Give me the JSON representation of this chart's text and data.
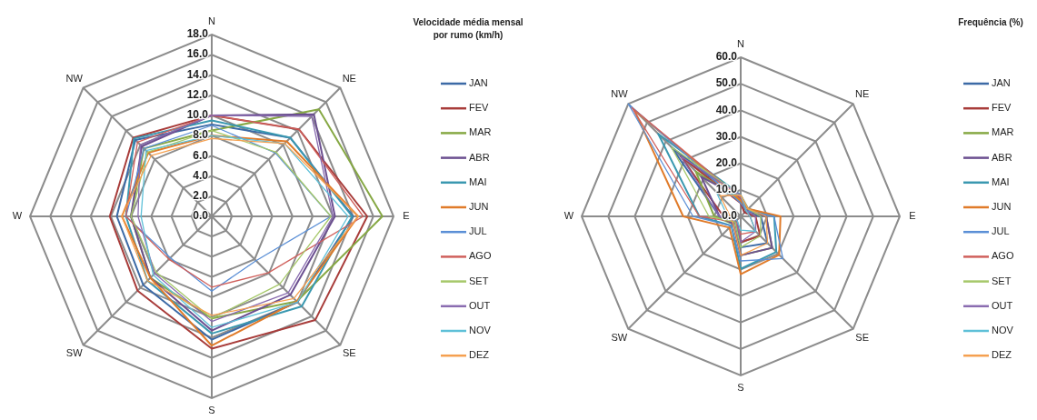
{
  "chart_data": [
    {
      "type": "radar",
      "title": "Velocidade média mensal por rumo (km/h)",
      "categories": [
        "N",
        "NE",
        "E",
        "SE",
        "S",
        "SW",
        "W",
        "NW"
      ],
      "ylim": [
        0,
        18
      ],
      "yticks": [
        {
          "value": 0,
          "label": "0.0"
        },
        {
          "value": 2,
          "label": "2.0"
        },
        {
          "value": 4,
          "label": "4.0"
        },
        {
          "value": 6,
          "label": "6.0"
        },
        {
          "value": 8,
          "label": "8.0"
        },
        {
          "value": 10,
          "label": "10.0"
        },
        {
          "value": 12,
          "label": "12.0"
        },
        {
          "value": 14,
          "label": "14.0"
        },
        {
          "value": 16,
          "label": "16.0"
        },
        {
          "value": 18,
          "label": "18.0"
        }
      ],
      "grid": true,
      "legend": "right",
      "series": [
        {
          "name": "JAN",
          "color": "#3c6aa6",
          "values": [
            9.1,
            11.0,
            14.0,
            12.0,
            12.2,
            9.6,
            9.4,
            10.7
          ]
        },
        {
          "name": "FEV",
          "color": "#a83c3a",
          "values": [
            10.0,
            12.2,
            15.4,
            14.5,
            13.1,
            10.4,
            10.1,
            11.0
          ]
        },
        {
          "name": "MAR",
          "color": "#86a844",
          "values": [
            8.5,
            15.0,
            16.9,
            11.9,
            10.1,
            8.6,
            8.0,
            9.5
          ]
        },
        {
          "name": "ABR",
          "color": "#6b4f90",
          "values": [
            10.0,
            14.3,
            12.2,
            11.0,
            11.3,
            8.6,
            8.0,
            9.8
          ]
        },
        {
          "name": "MAI",
          "color": "#3a98b0",
          "values": [
            9.5,
            11.0,
            13.9,
            12.6,
            11.6,
            9.0,
            8.5,
            10.9
          ]
        },
        {
          "name": "JUN",
          "color": "#e07b2a",
          "values": [
            8.0,
            10.5,
            14.5,
            11.9,
            12.8,
            8.6,
            8.9,
            8.9
          ]
        },
        {
          "name": "JUL",
          "color": "#5b8fd6",
          "values": [
            9.0,
            8.9,
            11.8,
            6.2,
            7.4,
            5.8,
            8.5,
            9.5
          ]
        },
        {
          "name": "AGO",
          "color": "#d0605c",
          "values": [
            10.0,
            12.2,
            15.0,
            7.9,
            7.0,
            6.0,
            8.5,
            10.4
          ]
        },
        {
          "name": "SET",
          "color": "#a6c86a",
          "values": [
            8.5,
            9.0,
            11.8,
            9.5,
            10.1,
            7.8,
            8.0,
            9.0
          ]
        },
        {
          "name": "OUT",
          "color": "#8a6cb0",
          "values": [
            10.0,
            14.0,
            12.0,
            10.7,
            10.4,
            8.0,
            7.3,
            10.0
          ]
        },
        {
          "name": "NOV",
          "color": "#5ec0d8",
          "values": [
            8.0,
            10.2,
            13.5,
            12.0,
            11.0,
            8.2,
            7.0,
            9.2
          ]
        },
        {
          "name": "DEZ",
          "color": "#f5a050",
          "values": [
            7.7,
            10.2,
            14.5,
            11.5,
            9.8,
            9.0,
            8.9,
            8.5
          ]
        }
      ]
    },
    {
      "type": "radar",
      "title": "Frequência (%)",
      "categories": [
        "N",
        "NE",
        "E",
        "SE",
        "S",
        "SW",
        "W",
        "NW"
      ],
      "ylim": [
        0,
        60
      ],
      "yticks": [
        {
          "value": 0,
          "label": "0.0"
        },
        {
          "value": 10,
          "label": "10.0"
        },
        {
          "value": 20,
          "label": "20.0"
        },
        {
          "value": 30,
          "label": "30.0"
        },
        {
          "value": 40,
          "label": "40.0"
        },
        {
          "value": 50,
          "label": "50.0"
        },
        {
          "value": 60,
          "label": "60.0"
        }
      ],
      "grid": true,
      "legend": "right",
      "series": [
        {
          "name": "JAN",
          "color": "#3c6aa6",
          "values": [
            6,
            2,
            7.6,
            14.3,
            11.7,
            3,
            8,
            37
          ]
        },
        {
          "name": "FEV",
          "color": "#a83c3a",
          "values": [
            5,
            2,
            5.6,
            10.4,
            9.7,
            2,
            6.5,
            32
          ]
        },
        {
          "name": "MAR",
          "color": "#86a844",
          "values": [
            6,
            3,
            9.6,
            16.8,
            14.7,
            4,
            10,
            24
          ]
        },
        {
          "name": "ABR",
          "color": "#6b4f90",
          "values": [
            7,
            3,
            9.6,
            16.8,
            14.7,
            4,
            8,
            21
          ]
        },
        {
          "name": "MAI",
          "color": "#3a98b0",
          "values": [
            8,
            4,
            12.6,
            19,
            19.8,
            5,
            15.6,
            44
          ]
        },
        {
          "name": "JUN",
          "color": "#e07b2a",
          "values": [
            6,
            4,
            15,
            20.5,
            21.8,
            6,
            21.7,
            57
          ]
        },
        {
          "name": "JUL",
          "color": "#5b8fd6",
          "values": [
            5,
            3,
            12.6,
            22.5,
            16.8,
            5,
            18,
            60
          ]
        },
        {
          "name": "AGO",
          "color": "#d0605c",
          "values": [
            7,
            3,
            3.5,
            8,
            6.7,
            3,
            15.6,
            58
          ]
        },
        {
          "name": "SET",
          "color": "#a6c86a",
          "values": [
            8,
            4,
            7.6,
            10.4,
            11.7,
            3,
            12,
            37
          ]
        },
        {
          "name": "OUT",
          "color": "#8a6cb0",
          "values": [
            8,
            3,
            5.6,
            8,
            9.7,
            2,
            8,
            32
          ]
        },
        {
          "name": "NOV",
          "color": "#5ec0d8",
          "values": [
            8,
            3,
            3.5,
            8,
            5.2,
            2,
            5,
            13
          ]
        },
        {
          "name": "DEZ",
          "color": "#f5a050",
          "values": [
            8,
            4,
            9.6,
            14.3,
            14.7,
            4,
            4,
            11
          ]
        }
      ]
    }
  ]
}
